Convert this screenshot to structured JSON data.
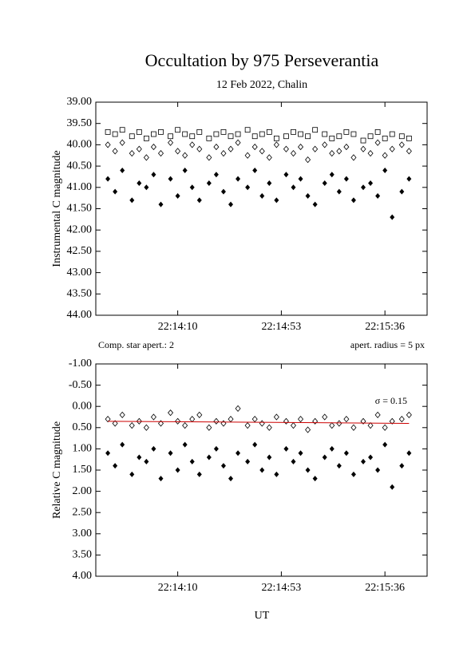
{
  "chart_data": [
    {
      "type": "scatter",
      "title": "Occultation by 975 Perseverantia",
      "subtitle": "12 Feb 2022, Chalin",
      "ylabel": "Instrumental C magnitude",
      "annotations": [
        "Comp. star apert.: 2",
        "apert. radius = 5 px"
      ],
      "ylim": [
        39,
        44
      ],
      "y_inverted": true,
      "yticks": [
        {
          "value": 39,
          "label": "39.00"
        },
        {
          "value": 39.5,
          "label": "39.50"
        },
        {
          "value": 40,
          "label": "40.00"
        },
        {
          "value": 40.5,
          "label": "40.50"
        },
        {
          "value": 41,
          "label": "41.00"
        },
        {
          "value": 41.5,
          "label": "41.50"
        },
        {
          "value": 42,
          "label": "42.00"
        },
        {
          "value": 42.5,
          "label": "42.50"
        },
        {
          "value": 43,
          "label": "43.00"
        },
        {
          "value": 43.5,
          "label": "43.50"
        },
        {
          "value": 44,
          "label": "44.00"
        }
      ],
      "xlim": [
        80016,
        80153.5
      ],
      "xticks": [
        {
          "value": 80050,
          "label": "22:14:10"
        },
        {
          "value": 80093,
          "label": "22:14:53"
        },
        {
          "value": 80136,
          "label": "22:15:36"
        }
      ],
      "x": [
        80021,
        80024,
        80027,
        80031,
        80034,
        80037,
        80040,
        80043,
        80047,
        80050,
        80053,
        80056,
        80059,
        80063,
        80066,
        80069,
        80072,
        80075,
        80079,
        80082,
        80085,
        80088,
        80091,
        80095,
        80098,
        80101,
        80104,
        80107,
        80111,
        80114,
        80117,
        80120,
        80123,
        80127,
        80130,
        80133,
        80136,
        80139,
        80143,
        80146
      ],
      "series": [
        {
          "color": "#000000",
          "marker": "square-open",
          "values": [
            39.7,
            39.75,
            39.65,
            39.8,
            39.7,
            39.85,
            39.75,
            39.7,
            39.8,
            39.65,
            39.75,
            39.8,
            39.7,
            39.85,
            39.75,
            39.7,
            39.8,
            39.75,
            39.65,
            39.8,
            39.75,
            39.7,
            39.85,
            39.8,
            39.7,
            39.75,
            39.8,
            39.65,
            39.75,
            39.85,
            39.8,
            39.7,
            39.75,
            39.9,
            39.8,
            39.7,
            39.85,
            39.75,
            39.8,
            39.85
          ]
        },
        {
          "color": "#000000",
          "marker": "diamond-open",
          "values": [
            40.0,
            40.15,
            39.95,
            40.2,
            40.1,
            40.3,
            40.05,
            40.2,
            39.95,
            40.15,
            40.25,
            40.0,
            40.1,
            40.3,
            40.05,
            40.2,
            40.1,
            39.95,
            40.25,
            40.05,
            40.15,
            40.3,
            40.0,
            40.1,
            40.2,
            40.05,
            40.35,
            40.1,
            40.0,
            40.2,
            40.15,
            40.05,
            40.3,
            40.1,
            40.2,
            39.95,
            40.25,
            40.1,
            40.0,
            40.15
          ]
        },
        {
          "color": "#000000",
          "marker": "diamond",
          "values": [
            40.8,
            41.1,
            40.6,
            41.3,
            40.9,
            41.0,
            40.7,
            41.4,
            40.8,
            41.2,
            40.6,
            41.0,
            41.3,
            40.9,
            40.7,
            41.1,
            41.4,
            40.8,
            41.0,
            40.6,
            41.2,
            40.9,
            41.3,
            40.7,
            41.0,
            40.8,
            41.2,
            41.4,
            40.9,
            40.7,
            41.1,
            40.8,
            41.3,
            41.0,
            40.9,
            41.2,
            40.6,
            41.7,
            41.1,
            40.8
          ]
        }
      ]
    },
    {
      "type": "scatter",
      "ylabel": "Relative C magnitude",
      "xlabel": "UT",
      "annotations": [
        "σ = 0.15"
      ],
      "ylim": [
        -1,
        4
      ],
      "y_inverted": true,
      "yticks": [
        {
          "value": -1,
          "label": "-1.00"
        },
        {
          "value": -0.5,
          "label": "-0.50"
        },
        {
          "value": 0,
          "label": "0.00"
        },
        {
          "value": 0.5,
          "label": "0.50"
        },
        {
          "value": 1,
          "label": "1.00"
        },
        {
          "value": 1.5,
          "label": "1.50"
        },
        {
          "value": 2,
          "label": "2.00"
        },
        {
          "value": 2.5,
          "label": "2.50"
        },
        {
          "value": 3,
          "label": "3.00"
        },
        {
          "value": 3.5,
          "label": "3.50"
        },
        {
          "value": 4,
          "label": "4.00"
        }
      ],
      "xlim": [
        80016,
        80153.5
      ],
      "xticks": [
        {
          "value": 80050,
          "label": "22:14:10"
        },
        {
          "value": 80093,
          "label": "22:14:53"
        },
        {
          "value": 80136,
          "label": "22:15:36"
        }
      ],
      "x": [
        80021,
        80024,
        80027,
        80031,
        80034,
        80037,
        80040,
        80043,
        80047,
        80050,
        80053,
        80056,
        80059,
        80063,
        80066,
        80069,
        80072,
        80075,
        80079,
        80082,
        80085,
        80088,
        80091,
        80095,
        80098,
        80101,
        80104,
        80107,
        80111,
        80114,
        80117,
        80120,
        80123,
        80127,
        80130,
        80133,
        80136,
        80139,
        80143,
        80146
      ],
      "series": [
        {
          "color": "#000000",
          "marker": "diamond-open",
          "values": [
            0.3,
            0.4,
            0.2,
            0.45,
            0.35,
            0.5,
            0.25,
            0.4,
            0.15,
            0.35,
            0.45,
            0.3,
            0.2,
            0.5,
            0.35,
            0.4,
            0.3,
            0.05,
            0.45,
            0.3,
            0.4,
            0.5,
            0.25,
            0.35,
            0.45,
            0.3,
            0.55,
            0.35,
            0.25,
            0.45,
            0.4,
            0.3,
            0.5,
            0.35,
            0.45,
            0.2,
            0.5,
            0.35,
            0.3,
            0.2
          ]
        },
        {
          "color": "#000000",
          "marker": "diamond",
          "values": [
            1.1,
            1.4,
            0.9,
            1.6,
            1.2,
            1.3,
            1.0,
            1.7,
            1.1,
            1.5,
            0.9,
            1.3,
            1.6,
            1.2,
            1.0,
            1.4,
            1.7,
            1.1,
            1.3,
            0.9,
            1.5,
            1.2,
            1.6,
            1.0,
            1.3,
            1.1,
            1.5,
            1.7,
            1.2,
            1.0,
            1.4,
            1.1,
            1.6,
            1.3,
            1.2,
            1.5,
            0.9,
            1.9,
            1.4,
            1.1
          ]
        },
        {
          "color": "#cc0000",
          "marker": "line",
          "x": [
            80021,
            80146
          ],
          "values": [
            0.35,
            0.4
          ]
        }
      ]
    }
  ]
}
